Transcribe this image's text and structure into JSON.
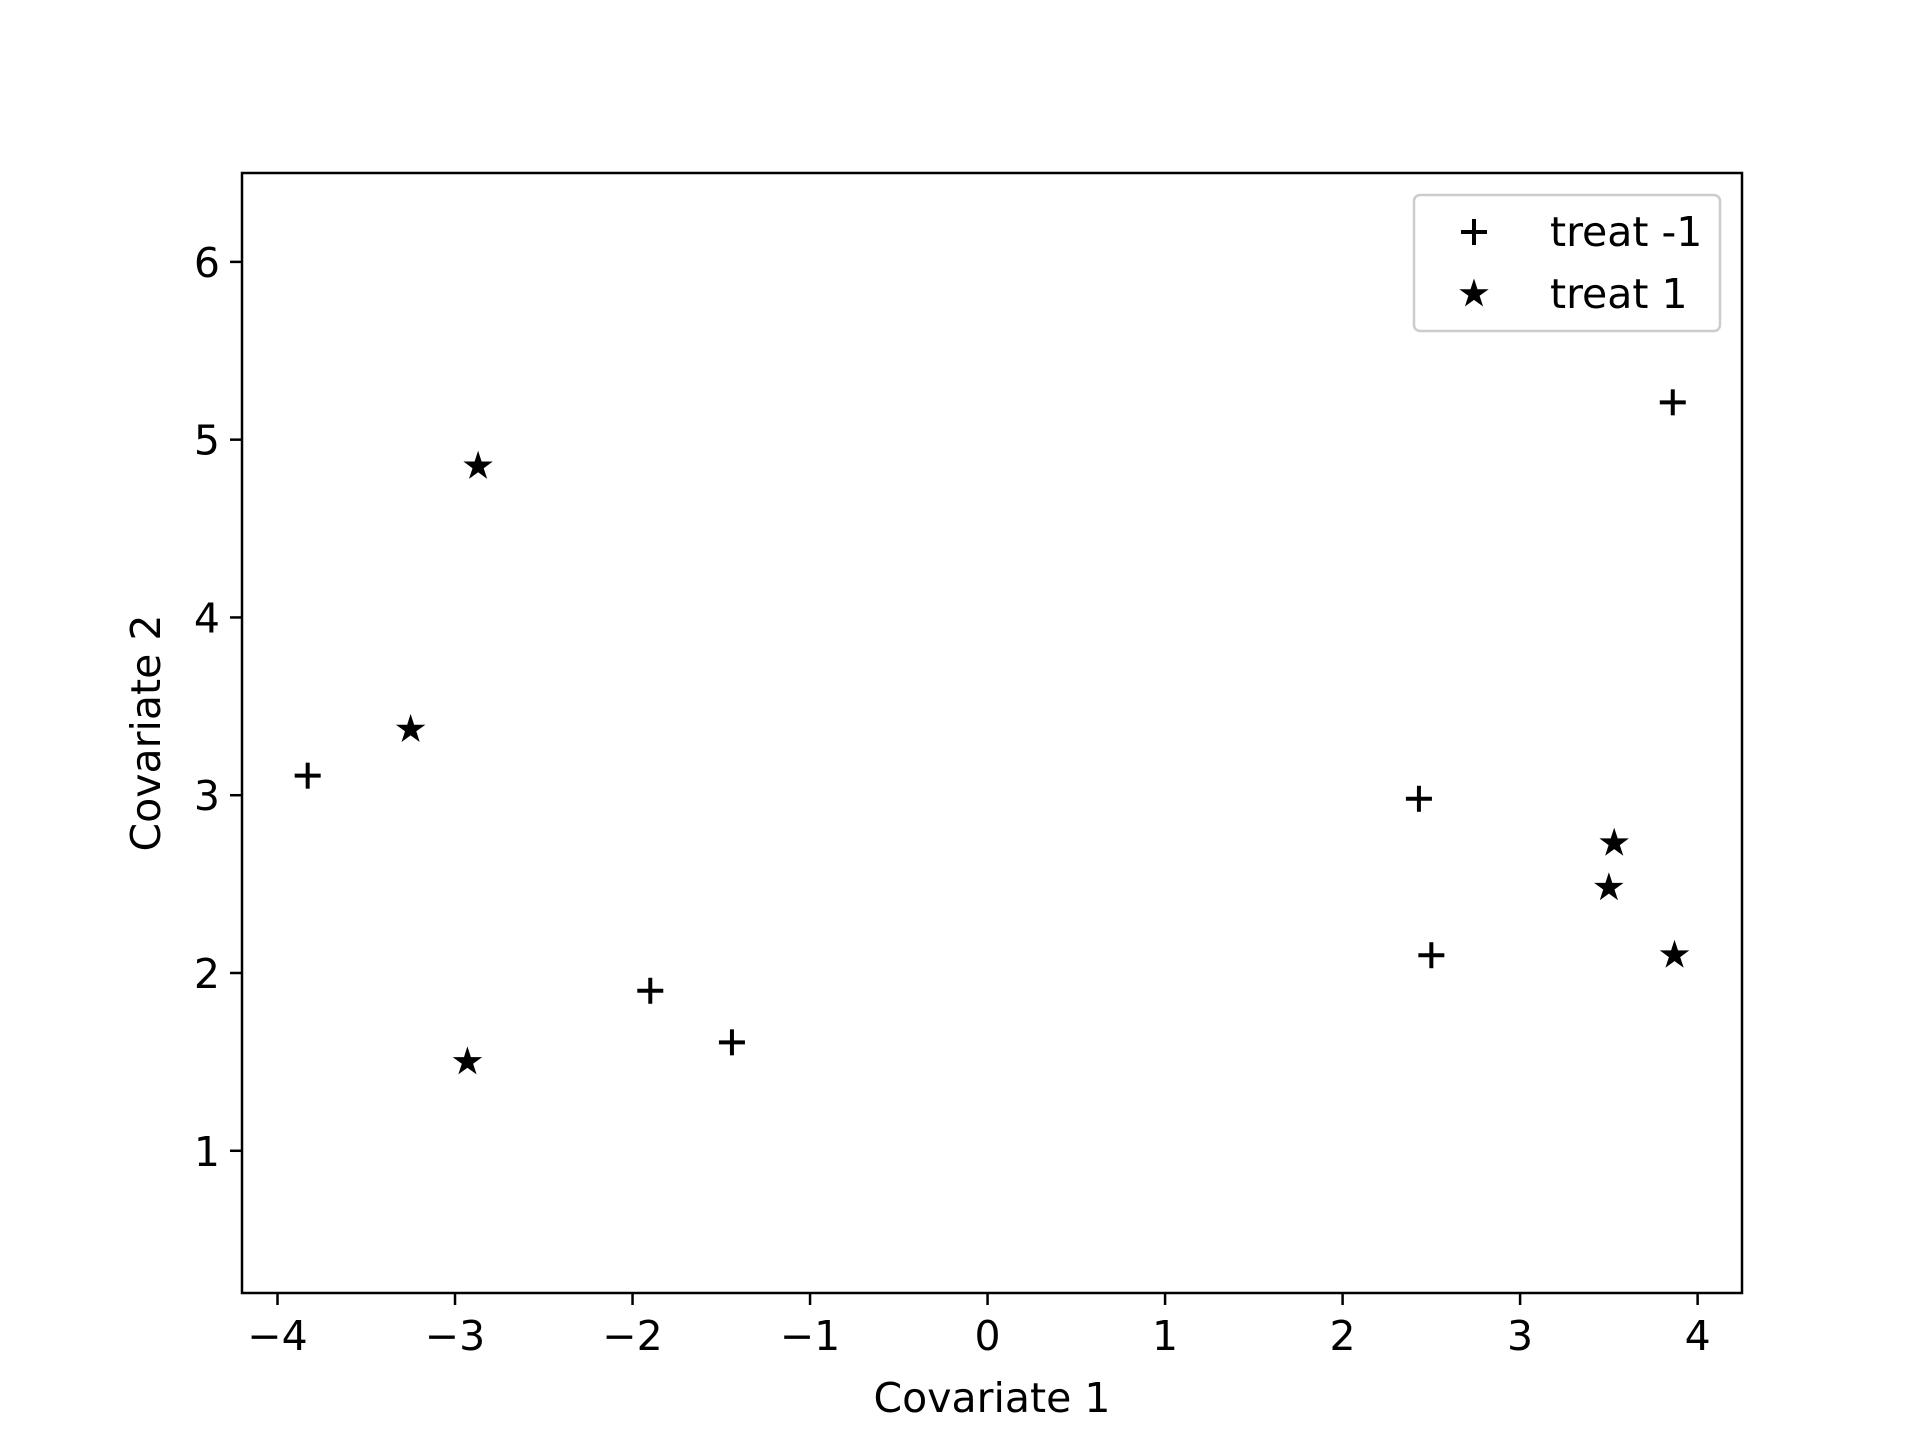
{
  "chart_data": {
    "type": "scatter",
    "title": "",
    "xlabel": "Covariate 1",
    "ylabel": "Covariate 2",
    "xlim": [
      -4.2,
      4.25
    ],
    "ylim": [
      0.2,
      6.5
    ],
    "x_ticks": [
      -4,
      -3,
      -2,
      -1,
      0,
      1,
      2,
      3,
      4
    ],
    "x_tick_labels": [
      "−4",
      "−3",
      "−2",
      "−1",
      "0",
      "1",
      "2",
      "3",
      "4"
    ],
    "y_ticks": [
      1,
      2,
      3,
      4,
      5,
      6
    ],
    "y_tick_labels": [
      "1",
      "2",
      "3",
      "4",
      "5",
      "6"
    ],
    "grid": false,
    "legend_position": "top-right",
    "series": [
      {
        "name": "treat -1",
        "marker": "plus",
        "color": "#000000",
        "points": [
          {
            "x": -3.83,
            "y": 3.11
          },
          {
            "x": -1.9,
            "y": 1.9
          },
          {
            "x": -1.44,
            "y": 1.61
          },
          {
            "x": 2.43,
            "y": 2.98
          },
          {
            "x": 2.5,
            "y": 2.1
          },
          {
            "x": 3.86,
            "y": 5.21
          }
        ]
      },
      {
        "name": "treat 1",
        "marker": "star",
        "color": "#000000",
        "points": [
          {
            "x": -3.25,
            "y": 3.37
          },
          {
            "x": -2.87,
            "y": 4.85
          },
          {
            "x": -2.93,
            "y": 1.5
          },
          {
            "x": 3.53,
            "y": 2.73
          },
          {
            "x": 3.5,
            "y": 2.48
          },
          {
            "x": 3.87,
            "y": 2.1
          }
        ]
      }
    ]
  }
}
